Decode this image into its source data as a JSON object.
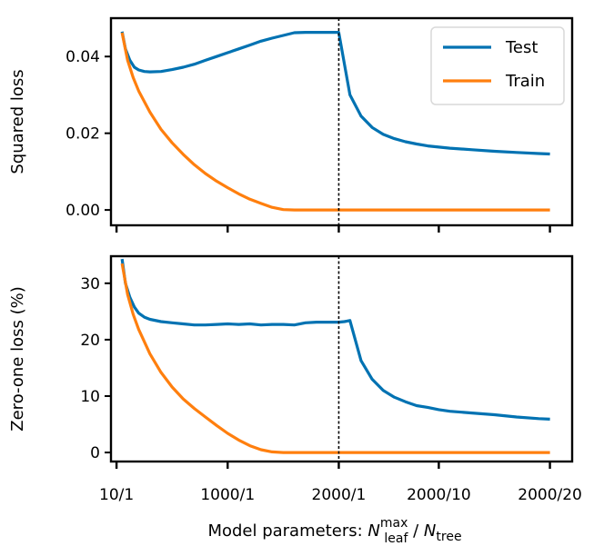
{
  "chart_data": [
    {
      "type": "line",
      "ylabel": "Squared loss",
      "ylim": [
        -0.004,
        0.05
      ],
      "yticks": [
        0.0,
        0.02,
        0.04
      ],
      "ytick_labels": [
        "0.00",
        "0.02",
        "0.04"
      ],
      "xlim": [
        -0.05,
        4.1
      ],
      "xticks": [
        0,
        1,
        2,
        2.9,
        3.9
      ],
      "divider_x": 2,
      "legend": {
        "position": "top-right",
        "entries": [
          "Test",
          "Train"
        ]
      },
      "series": [
        {
          "name": "Test",
          "color": "#0072b2",
          "x": [
            0.05,
            0.08,
            0.12,
            0.16,
            0.2,
            0.25,
            0.3,
            0.4,
            0.5,
            0.6,
            0.7,
            0.8,
            0.9,
            1.0,
            1.1,
            1.2,
            1.3,
            1.4,
            1.5,
            1.6,
            1.7,
            1.8,
            1.9,
            2.0,
            2.1,
            2.2,
            2.3,
            2.4,
            2.5,
            2.6,
            2.7,
            2.8,
            2.9,
            3.0,
            3.2,
            3.4,
            3.6,
            3.8,
            3.9
          ],
          "values": [
            0.0465,
            0.042,
            0.039,
            0.0372,
            0.0365,
            0.0361,
            0.036,
            0.0361,
            0.0366,
            0.0372,
            0.038,
            0.039,
            0.04,
            0.041,
            0.042,
            0.043,
            0.044,
            0.0448,
            0.0455,
            0.0462,
            0.0463,
            0.0463,
            0.0463,
            0.0463,
            0.03,
            0.0245,
            0.0215,
            0.0197,
            0.0186,
            0.0178,
            0.0172,
            0.0167,
            0.0164,
            0.0161,
            0.0157,
            0.0153,
            0.015,
            0.0147,
            0.0146
          ]
        },
        {
          "name": "Train",
          "color": "#ff7f0e",
          "x": [
            0.05,
            0.1,
            0.15,
            0.2,
            0.3,
            0.4,
            0.5,
            0.6,
            0.7,
            0.8,
            0.9,
            1.0,
            1.1,
            1.2,
            1.3,
            1.4,
            1.5,
            1.6,
            1.7,
            1.8,
            1.9,
            2.0,
            2.5,
            3.0,
            3.5,
            3.9
          ],
          "values": [
            0.0462,
            0.039,
            0.0345,
            0.031,
            0.0255,
            0.021,
            0.0175,
            0.0145,
            0.0118,
            0.0095,
            0.0075,
            0.0058,
            0.0042,
            0.0028,
            0.0017,
            0.0007,
            0.0001,
            0.0,
            0.0,
            0.0,
            0.0,
            0.0,
            0.0,
            0.0,
            0.0,
            0.0
          ]
        }
      ]
    },
    {
      "type": "line",
      "ylabel": "Zero-one loss (%)",
      "ylim": [
        -1.6,
        34.8
      ],
      "yticks": [
        0,
        10,
        20,
        30
      ],
      "ytick_labels": [
        "0",
        "10",
        "20",
        "30"
      ],
      "xlim": [
        -0.05,
        4.1
      ],
      "xticks": [
        0,
        1,
        2,
        2.9,
        3.9
      ],
      "xtick_labels": [
        "10/1",
        "1000/1",
        "2000/1",
        "2000/10",
        "2000/20"
      ],
      "xlabel": "Model parameters: N_leaf^max / N_tree",
      "xlabel_parts": {
        "prefix": "Model parameters: ",
        "symbol1": "N",
        "sub1": "leaf",
        "sup1": "max",
        "separator": "/ ",
        "symbol2": "N",
        "sub2": "tree"
      },
      "divider_x": 2,
      "series": [
        {
          "name": "Test",
          "color": "#0072b2",
          "x": [
            0.05,
            0.08,
            0.12,
            0.16,
            0.2,
            0.25,
            0.3,
            0.4,
            0.5,
            0.6,
            0.7,
            0.8,
            0.9,
            1.0,
            1.1,
            1.2,
            1.3,
            1.4,
            1.5,
            1.6,
            1.7,
            1.8,
            1.9,
            2.0,
            2.05,
            2.1,
            2.2,
            2.3,
            2.4,
            2.5,
            2.6,
            2.7,
            2.8,
            2.9,
            3.0,
            3.2,
            3.4,
            3.6,
            3.8,
            3.9
          ],
          "values": [
            34.3,
            30.0,
            27.5,
            25.8,
            24.7,
            24.0,
            23.6,
            23.2,
            23.0,
            22.8,
            22.6,
            22.6,
            22.7,
            22.8,
            22.7,
            22.8,
            22.6,
            22.7,
            22.7,
            22.6,
            23.0,
            23.1,
            23.1,
            23.1,
            23.2,
            23.4,
            16.3,
            13.0,
            11.0,
            9.8,
            9.0,
            8.3,
            8.0,
            7.6,
            7.3,
            7.0,
            6.7,
            6.3,
            6.0,
            5.9
          ]
        },
        {
          "name": "Train",
          "color": "#ff7f0e",
          "x": [
            0.05,
            0.1,
            0.15,
            0.2,
            0.3,
            0.4,
            0.5,
            0.6,
            0.7,
            0.8,
            0.9,
            1.0,
            1.1,
            1.2,
            1.3,
            1.4,
            1.5,
            1.6,
            1.7,
            1.8,
            1.9,
            2.0,
            2.5,
            3.0,
            3.5,
            3.9
          ],
          "values": [
            33.5,
            28.0,
            24.5,
            21.8,
            17.5,
            14.2,
            11.6,
            9.5,
            7.8,
            6.3,
            4.8,
            3.4,
            2.2,
            1.2,
            0.5,
            0.1,
            0.0,
            0.0,
            0.0,
            0.0,
            0.0,
            0.0,
            0.0,
            0.0,
            0.0,
            0.0
          ]
        }
      ]
    }
  ]
}
